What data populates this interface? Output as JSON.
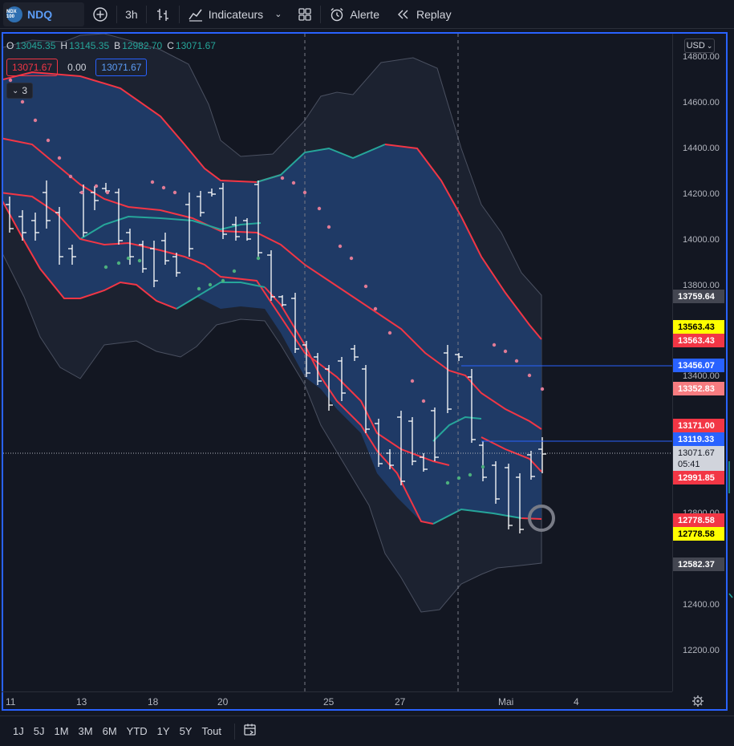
{
  "toolbar": {
    "symbol_logo": "NDX 100",
    "symbol": "NDQ",
    "interval": "3h",
    "indicators_label": "Indicateurs",
    "alert_label": "Alerte",
    "replay_label": "Replay"
  },
  "legend": {
    "o_key": "O",
    "o_val": "13045.35",
    "h_key": "H",
    "h_val": "13145.35",
    "b_key": "B",
    "b_val": "12982.70",
    "c_key": "C",
    "c_val": "13071.67",
    "sell": "13071.67",
    "spread": "0.00",
    "buy": "13071.67",
    "collapsed_count": "3"
  },
  "price_axis": {
    "currency": "USD",
    "ticks": [
      "14800.00",
      "14600.00",
      "14400.00",
      "14200.00",
      "14000.00",
      "13800.00",
      "13400.00",
      "12800.00",
      "12400.00",
      "12200.00"
    ],
    "tags": [
      {
        "value": "13759.64",
        "bg": "#434651",
        "fg": "#ffffff"
      },
      {
        "value": "13563.43",
        "bg": "#ffff00",
        "fg": "#000000"
      },
      {
        "value": "13563.43",
        "bg": "#f23645",
        "fg": "#ffffff"
      },
      {
        "value": "13456.07",
        "bg": "#2962ff",
        "fg": "#ffffff"
      },
      {
        "value": "13352.83",
        "bg": "#f77c80",
        "fg": "#ffffff"
      },
      {
        "value": "13171.00",
        "bg": "#f23645",
        "fg": "#ffffff"
      },
      {
        "value": "13119.33",
        "bg": "#2962ff",
        "fg": "#ffffff"
      },
      {
        "value": "13071.67",
        "bg": "#d1d4dc",
        "fg": "#131722"
      },
      {
        "value": "05:41",
        "bg": "#d1d4dc",
        "fg": "#131722"
      },
      {
        "value": "12991.85",
        "bg": "#f23645",
        "fg": "#ffffff"
      },
      {
        "value": "12778.58",
        "bg": "#f23645",
        "fg": "#ffffff"
      },
      {
        "value": "12778.58",
        "bg": "#ffff00",
        "fg": "#000000"
      },
      {
        "value": "12582.37",
        "bg": "#434651",
        "fg": "#ffffff"
      }
    ]
  },
  "time_axis": {
    "labels": [
      "11",
      "13",
      "18",
      "20",
      "25",
      "27",
      "Mai",
      "4"
    ]
  },
  "ranges": [
    "1J",
    "5J",
    "1M",
    "3M",
    "6M",
    "YTD",
    "1Y",
    "5Y",
    "Tout"
  ],
  "colors": {
    "accent": "#2962ff",
    "band_red": "#f23645",
    "band_green": "#26a69a",
    "sar_pink": "#e07b96",
    "sar_green": "#4caf7d"
  }
}
